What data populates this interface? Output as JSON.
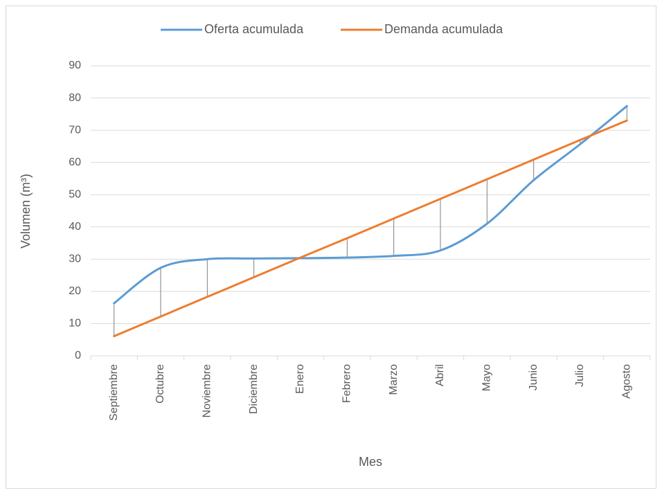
{
  "chart_data": {
    "type": "line",
    "categories": [
      "Septiembre",
      "Octubre",
      "Noviembre",
      "Diciembre",
      "Enero",
      "Febrero",
      "Marzo",
      "Abril",
      "Mayo",
      "Junio",
      "Julio",
      "Agosto"
    ],
    "series": [
      {
        "name": "Oferta acumulada",
        "color": "#5b9bd5",
        "values": [
          16.3,
          27.3,
          30.0,
          30.2,
          30.3,
          30.5,
          31.0,
          32.7,
          41.0,
          54.5,
          65.7,
          77.5
        ]
      },
      {
        "name": "Demanda acumulada",
        "color": "#ed7d31",
        "values": [
          6.1,
          12.2,
          18.3,
          24.4,
          30.5,
          36.5,
          42.6,
          48.7,
          54.8,
          60.9,
          67.0,
          73.0
        ]
      }
    ],
    "ylim": [
      0,
      90
    ],
    "yticks": [
      0,
      10,
      20,
      30,
      40,
      50,
      60,
      70,
      80,
      90
    ],
    "y_label": "Volumen (m³)",
    "x_label": "Mes",
    "grid": true,
    "legend": "top",
    "smooth": true,
    "drop_lines": true
  }
}
